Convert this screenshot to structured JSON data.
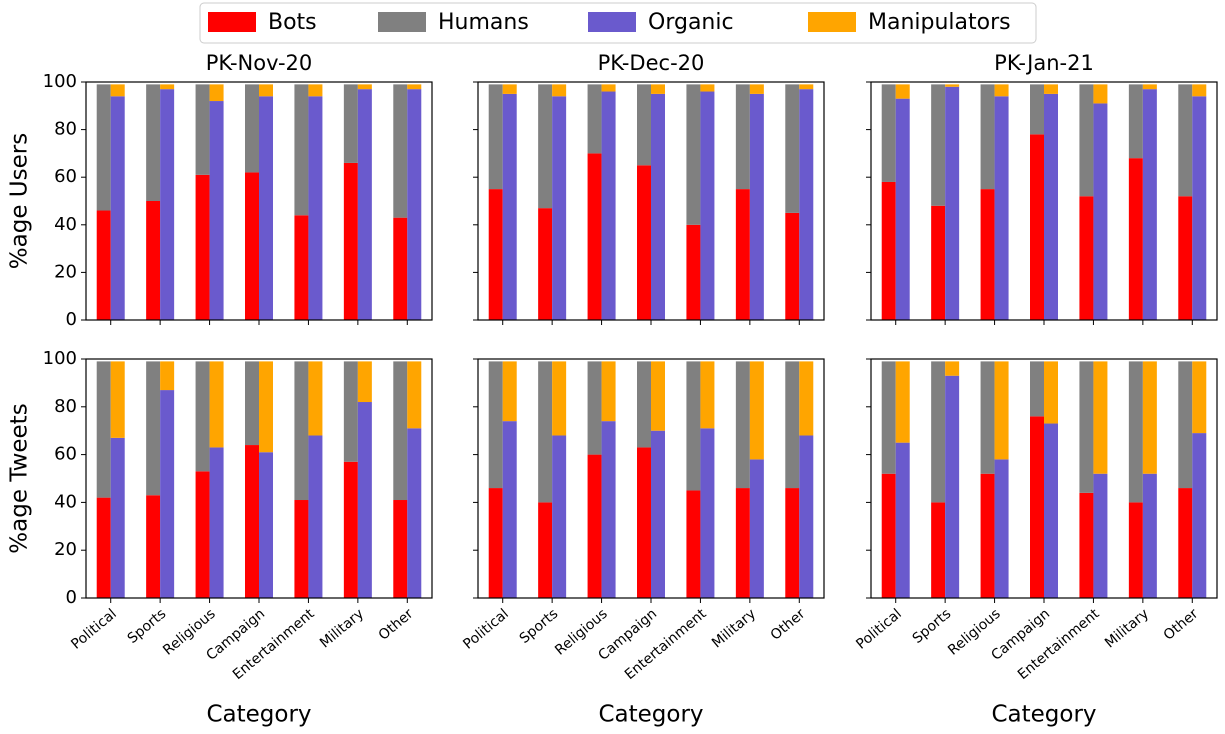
{
  "chart_data": {
    "type": "bar",
    "series": [
      {
        "name": "Bots",
        "color": "#ff0000",
        "stack": 0
      },
      {
        "name": "Humans",
        "color": "#808080",
        "stack": 0
      },
      {
        "name": "Organic",
        "color": "#6a5acd",
        "stack": 1
      },
      {
        "name": "Manipulators",
        "color": "#ffa500",
        "stack": 1
      }
    ],
    "categories": [
      "Political",
      "Sports",
      "Religious",
      "Campaign",
      "Entertainment",
      "Military",
      "Other"
    ],
    "ylim": [
      0,
      100
    ],
    "yticks": [
      0,
      20,
      40,
      60,
      80,
      100
    ],
    "panels": [
      {
        "title": "PK-Nov-20",
        "ylabel": "%age Users",
        "yticklabels": true,
        "xticklabels": false,
        "values": [
          [
            46,
            50,
            61,
            62,
            44,
            66,
            43
          ],
          [
            53,
            49,
            38,
            37,
            55,
            33,
            56
          ],
          [
            94,
            97,
            92,
            94,
            94,
            97,
            97
          ],
          [
            5,
            2,
            7,
            5,
            5,
            2,
            2
          ]
        ]
      },
      {
        "title": "PK-Dec-20",
        "yticklabels": false,
        "xticklabels": false,
        "values": [
          [
            55,
            47,
            70,
            65,
            40,
            55,
            45
          ],
          [
            44,
            52,
            29,
            34,
            59,
            44,
            54
          ],
          [
            95,
            94,
            96,
            95,
            96,
            95,
            97
          ],
          [
            4,
            5,
            3,
            4,
            3,
            4,
            2
          ]
        ]
      },
      {
        "title": "PK-Jan-21",
        "yticklabels": false,
        "xticklabels": false,
        "values": [
          [
            58,
            48,
            55,
            78,
            52,
            68,
            52
          ],
          [
            41,
            51,
            44,
            21,
            47,
            31,
            47
          ],
          [
            93,
            98,
            94,
            95,
            91,
            97,
            94
          ],
          [
            6,
            1,
            5,
            4,
            8,
            2,
            5
          ]
        ]
      },
      {
        "ylabel": "%age Tweets",
        "xlabel": "Category",
        "yticklabels": true,
        "xticklabels": true,
        "values": [
          [
            42,
            43,
            53,
            64,
            41,
            57,
            41
          ],
          [
            57,
            56,
            46,
            35,
            58,
            42,
            58
          ],
          [
            67,
            87,
            63,
            61,
            68,
            82,
            71
          ],
          [
            32,
            12,
            36,
            38,
            31,
            17,
            28
          ]
        ]
      },
      {
        "xlabel": "Category",
        "yticklabels": false,
        "xticklabels": true,
        "values": [
          [
            46,
            40,
            60,
            63,
            45,
            46,
            46
          ],
          [
            53,
            59,
            39,
            36,
            54,
            53,
            53
          ],
          [
            74,
            68,
            74,
            70,
            71,
            58,
            68
          ],
          [
            25,
            31,
            25,
            29,
            28,
            41,
            31
          ]
        ]
      },
      {
        "xlabel": "Category",
        "yticklabels": false,
        "xticklabels": true,
        "values": [
          [
            52,
            40,
            52,
            76,
            44,
            40,
            46
          ],
          [
            47,
            59,
            47,
            23,
            55,
            59,
            53
          ],
          [
            65,
            93,
            58,
            73,
            52,
            52,
            69
          ],
          [
            34,
            6,
            41,
            26,
            47,
            47,
            30
          ]
        ]
      }
    ]
  }
}
